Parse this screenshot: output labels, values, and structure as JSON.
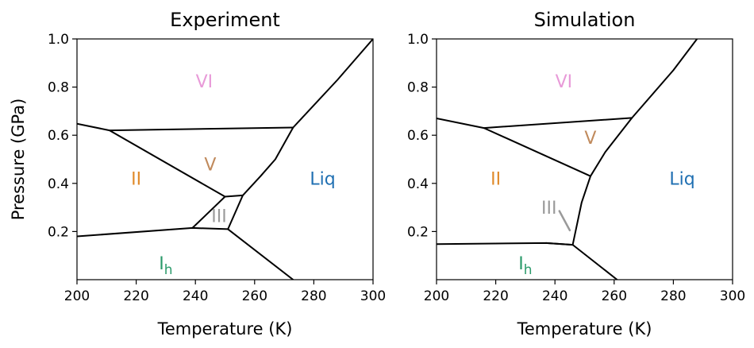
{
  "chart_data": [
    {
      "type": "line",
      "title": "Experiment",
      "xlabel": "Temperature (K)",
      "ylabel": "Pressure (GPa)",
      "xlim": [
        200,
        300
      ],
      "ylim": [
        0.0,
        1.0
      ],
      "xticks": [
        "200",
        "220",
        "240",
        "260",
        "280",
        "300"
      ],
      "yticks": [
        "0.2",
        "0.4",
        "0.6",
        "0.8",
        "1.0"
      ],
      "grid": false,
      "series": [
        {
          "x": [
            200,
            239,
            251,
            273
          ],
          "y": [
            0.18,
            0.215,
            0.21,
            0.0
          ]
        },
        {
          "x": [
            239,
            250,
            256,
            251
          ],
          "y": [
            0.215,
            0.345,
            0.35,
            0.21
          ]
        },
        {
          "x": [
            256,
            262,
            267,
            273,
            288,
            300
          ],
          "y": [
            0.35,
            0.43,
            0.5,
            0.632,
            0.83,
            1.0
          ]
        },
        {
          "x": [
            200,
            211,
            250
          ],
          "y": [
            0.648,
            0.62,
            0.345
          ]
        },
        {
          "x": [
            211,
            273
          ],
          "y": [
            0.62,
            0.632
          ]
        }
      ],
      "labels": [
        {
          "text": "VI",
          "x": 243,
          "y": 0.825,
          "color": "#e89ad8"
        },
        {
          "text": "V",
          "x": 245,
          "y": 0.48,
          "color": "#c08a5c"
        },
        {
          "text": "II",
          "x": 220,
          "y": 0.42,
          "color": "#e08a2a"
        },
        {
          "text": "III",
          "x": 248,
          "y": 0.265,
          "color": "#9a9a9a"
        },
        {
          "text": "Liq",
          "x": 283,
          "y": 0.42,
          "color": "#1f6fb2"
        },
        {
          "text": "I",
          "sub": "h",
          "x": 230,
          "y": 0.07,
          "color": "#2a9a6a"
        }
      ]
    },
    {
      "type": "line",
      "title": "Simulation",
      "xlabel": "Temperature (K)",
      "ylabel": "",
      "xlim": [
        200,
        300
      ],
      "ylim": [
        0.0,
        1.0
      ],
      "xticks": [
        "200",
        "220",
        "240",
        "260",
        "280",
        "300"
      ],
      "yticks": [
        "0.2",
        "0.4",
        "0.6",
        "0.8",
        "1.0"
      ],
      "grid": false,
      "series": [
        {
          "x": [
            200,
            237,
            246,
            261
          ],
          "y": [
            0.148,
            0.152,
            0.145,
            0.0
          ]
        },
        {
          "x": [
            237,
            246
          ],
          "y": [
            0.152,
            0.145
          ]
        },
        {
          "x": [
            246,
            249,
            252,
            257,
            266,
            280,
            288
          ],
          "y": [
            0.145,
            0.32,
            0.43,
            0.53,
            0.672,
            0.87,
            1.0
          ]
        },
        {
          "x": [
            200,
            216,
            252
          ],
          "y": [
            0.67,
            0.63,
            0.43
          ]
        },
        {
          "x": [
            216,
            266
          ],
          "y": [
            0.63,
            0.672
          ]
        }
      ],
      "annotation_lines": [
        {
          "color": "#9a9a9a",
          "x": [
            241.5,
            245
          ],
          "y": [
            0.285,
            0.205
          ]
        }
      ],
      "labels": [
        {
          "text": "VI",
          "x": 243,
          "y": 0.825,
          "color": "#e89ad8"
        },
        {
          "text": "V",
          "x": 252,
          "y": 0.59,
          "color": "#c08a5c"
        },
        {
          "text": "II",
          "x": 220,
          "y": 0.42,
          "color": "#e08a2a"
        },
        {
          "text": "III",
          "x": 238,
          "y": 0.3,
          "color": "#9a9a9a"
        },
        {
          "text": "Liq",
          "x": 283,
          "y": 0.42,
          "color": "#1f6fb2"
        },
        {
          "text": "I",
          "sub": "h",
          "x": 230,
          "y": 0.07,
          "color": "#2a9a6a"
        }
      ]
    }
  ]
}
